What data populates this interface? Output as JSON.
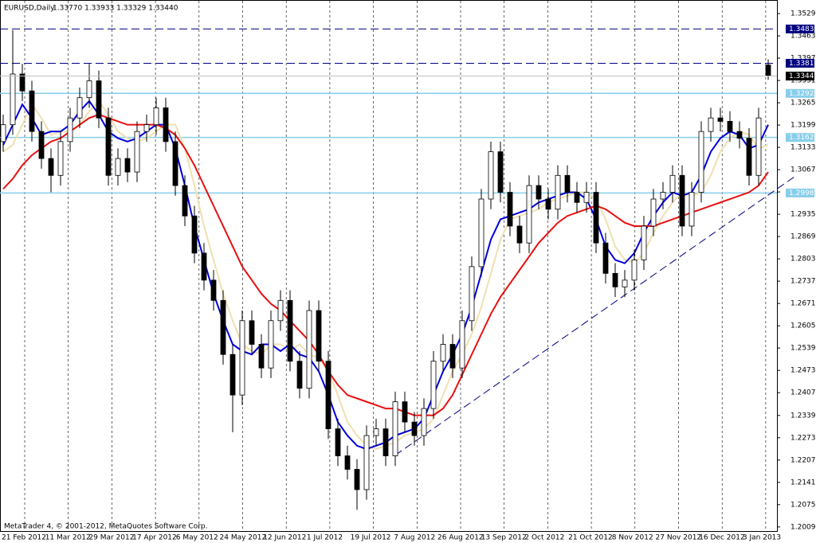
{
  "chart_data": {
    "type": "candlestick",
    "header": {
      "symbol": "EURUSD,Daily",
      "ohlc_text": "1.33770 1.33933 1.33329 1.33440"
    },
    "footer": "MetaTrader 4, © 2001-2012, MetaQuotes Software Corp.",
    "ylim": [
      1.1995,
      1.3555
    ],
    "yticks": [
      {
        "value": 1.3529,
        "label": "1.35290"
      },
      {
        "value": 1.3463,
        "label": "1.34630"
      },
      {
        "value": 1.3397,
        "label": "1.33970"
      },
      {
        "value": 1.3331,
        "label": "1.33310"
      },
      {
        "value": 1.3265,
        "label": "1.32650"
      },
      {
        "value": 1.3199,
        "label": "1.31990"
      },
      {
        "value": 1.3133,
        "label": "1.31330"
      },
      {
        "value": 1.3067,
        "label": "1.30670"
      },
      {
        "value": 1.3001,
        "label": "1.30010"
      },
      {
        "value": 1.2935,
        "label": "1.29350"
      },
      {
        "value": 1.2869,
        "label": "1.28690"
      },
      {
        "value": 1.2803,
        "label": "1.28030"
      },
      {
        "value": 1.2737,
        "label": "1.27370"
      },
      {
        "value": 1.2671,
        "label": "1.26710"
      },
      {
        "value": 1.2605,
        "label": "1.26050"
      },
      {
        "value": 1.2539,
        "label": "1.25390"
      },
      {
        "value": 1.2473,
        "label": "1.24730"
      },
      {
        "value": 1.2407,
        "label": "1.24070"
      },
      {
        "value": 1.23395,
        "label": "1.23395"
      },
      {
        "value": 1.22735,
        "label": "1.22735"
      },
      {
        "value": 1.22075,
        "label": "1.22075"
      },
      {
        "value": 1.21415,
        "label": "1.21415"
      },
      {
        "value": 1.20755,
        "label": "1.20755"
      },
      {
        "value": 1.20095,
        "label": "1.20095"
      }
    ],
    "x_labels": [
      "21 Feb 2012",
      "11 Mar 2012",
      "29 Mar 2012",
      "17 Apr 2012",
      "6 May 2012",
      "24 May 2012",
      "12 Jun 2012",
      "1 Jul 2012",
      "19 Jul 2012",
      "7 Aug 2012",
      "26 Aug 2012",
      "13 Sep 2012",
      "2 Oct 2012",
      "21 Oct 2012",
      "8 Nov 2012",
      "27 Nov 2012",
      "16 Dec 2012",
      "3 Jan 2013"
    ],
    "candles": [
      [
        1.315,
        1.323,
        1.312,
        1.32
      ],
      [
        1.32,
        1.348,
        1.317,
        1.335
      ],
      [
        1.335,
        1.338,
        1.327,
        1.33
      ],
      [
        1.33,
        1.333,
        1.315,
        1.318
      ],
      [
        1.318,
        1.321,
        1.307,
        1.31
      ],
      [
        1.31,
        1.313,
        1.3,
        1.305
      ],
      [
        1.305,
        1.318,
        1.302,
        1.315
      ],
      [
        1.315,
        1.325,
        1.312,
        1.322
      ],
      [
        1.322,
        1.331,
        1.319,
        1.328
      ],
      [
        1.328,
        1.338,
        1.325,
        1.333
      ],
      [
        1.333,
        1.336,
        1.319,
        1.322
      ],
      [
        1.322,
        1.325,
        1.302,
        1.305
      ],
      [
        1.305,
        1.313,
        1.302,
        1.31
      ],
      [
        1.31,
        1.313,
        1.303,
        1.306
      ],
      [
        1.306,
        1.321,
        1.303,
        1.318
      ],
      [
        1.318,
        1.323,
        1.315,
        1.32
      ],
      [
        1.32,
        1.328,
        1.317,
        1.325
      ],
      [
        1.325,
        1.328,
        1.312,
        1.315
      ],
      [
        1.315,
        1.318,
        1.299,
        1.302
      ],
      [
        1.302,
        1.305,
        1.29,
        1.293
      ],
      [
        1.293,
        1.296,
        1.279,
        1.282
      ],
      [
        1.282,
        1.285,
        1.271,
        1.274
      ],
      [
        1.274,
        1.277,
        1.265,
        1.268
      ],
      [
        1.268,
        1.271,
        1.249,
        1.252
      ],
      [
        1.252,
        1.255,
        1.229,
        1.24
      ],
      [
        1.24,
        1.265,
        1.237,
        1.262
      ],
      [
        1.262,
        1.265,
        1.252,
        1.255
      ],
      [
        1.255,
        1.258,
        1.245,
        1.248
      ],
      [
        1.248,
        1.265,
        1.245,
        1.262
      ],
      [
        1.262,
        1.271,
        1.259,
        1.268
      ],
      [
        1.268,
        1.271,
        1.247,
        1.25
      ],
      [
        1.25,
        1.253,
        1.239,
        1.242
      ],
      [
        1.242,
        1.268,
        1.239,
        1.265
      ],
      [
        1.265,
        1.268,
        1.247,
        1.25
      ],
      [
        1.25,
        1.253,
        1.227,
        1.23
      ],
      [
        1.23,
        1.233,
        1.219,
        1.222
      ],
      [
        1.222,
        1.225,
        1.215,
        1.218
      ],
      [
        1.218,
        1.221,
        1.206,
        1.212
      ],
      [
        1.212,
        1.231,
        1.209,
        1.228
      ],
      [
        1.228,
        1.233,
        1.225,
        1.23
      ],
      [
        1.23,
        1.233,
        1.219,
        1.222
      ],
      [
        1.222,
        1.241,
        1.219,
        1.238
      ],
      [
        1.238,
        1.241,
        1.229,
        1.232
      ],
      [
        1.232,
        1.235,
        1.225,
        1.228
      ],
      [
        1.228,
        1.239,
        1.225,
        1.236
      ],
      [
        1.236,
        1.253,
        1.233,
        1.25
      ],
      [
        1.25,
        1.258,
        1.247,
        1.255
      ],
      [
        1.255,
        1.258,
        1.245,
        1.248
      ],
      [
        1.248,
        1.265,
        1.245,
        1.262
      ],
      [
        1.262,
        1.281,
        1.259,
        1.278
      ],
      [
        1.278,
        1.301,
        1.275,
        1.298
      ],
      [
        1.298,
        1.315,
        1.295,
        1.312
      ],
      [
        1.312,
        1.315,
        1.297,
        1.3
      ],
      [
        1.3,
        1.303,
        1.287,
        1.29
      ],
      [
        1.29,
        1.293,
        1.282,
        1.285
      ],
      [
        1.285,
        1.305,
        1.282,
        1.302
      ],
      [
        1.302,
        1.305,
        1.295,
        1.298
      ],
      [
        1.298,
        1.301,
        1.292,
        1.295
      ],
      [
        1.295,
        1.308,
        1.292,
        1.305
      ],
      [
        1.305,
        1.308,
        1.297,
        1.3
      ],
      [
        1.3,
        1.303,
        1.294,
        1.297
      ],
      [
        1.297,
        1.303,
        1.294,
        1.3
      ],
      [
        1.3,
        1.303,
        1.282,
        1.285
      ],
      [
        1.285,
        1.288,
        1.273,
        1.276
      ],
      [
        1.276,
        1.279,
        1.269,
        1.272
      ],
      [
        1.272,
        1.277,
        1.269,
        1.274
      ],
      [
        1.274,
        1.283,
        1.271,
        1.28
      ],
      [
        1.28,
        1.293,
        1.277,
        1.29
      ],
      [
        1.29,
        1.301,
        1.287,
        1.298
      ],
      [
        1.298,
        1.303,
        1.295,
        1.3
      ],
      [
        1.3,
        1.308,
        1.297,
        1.305
      ],
      [
        1.305,
        1.308,
        1.287,
        1.29
      ],
      [
        1.29,
        1.303,
        1.287,
        1.3
      ],
      [
        1.3,
        1.321,
        1.297,
        1.318
      ],
      [
        1.318,
        1.325,
        1.315,
        1.322
      ],
      [
        1.322,
        1.325,
        1.318,
        1.321
      ],
      [
        1.321,
        1.324,
        1.315,
        1.318
      ],
      [
        1.318,
        1.321,
        1.313,
        1.316
      ],
      [
        1.316,
        1.319,
        1.302,
        1.305
      ],
      [
        1.305,
        1.325,
        1.302,
        1.322
      ],
      [
        1.3377,
        1.33933,
        1.33329,
        1.3344
      ]
    ],
    "moving_averages": [
      {
        "color": "#f0e0b0",
        "values": [
          1.312,
          1.314,
          1.32,
          1.326,
          1.322,
          1.317,
          1.318,
          1.318,
          1.32,
          1.324,
          1.327,
          1.323,
          1.318,
          1.316,
          1.315,
          1.316,
          1.318,
          1.32,
          1.32,
          1.313,
          1.302,
          1.29,
          1.28,
          1.27,
          1.262,
          1.255,
          1.253,
          1.252,
          1.255,
          1.255,
          1.253,
          1.255,
          1.252,
          1.251,
          1.247,
          1.24,
          1.232,
          1.228,
          1.225,
          1.224,
          1.225,
          1.226,
          1.228,
          1.229,
          1.23,
          1.233,
          1.24,
          1.247,
          1.252,
          1.258,
          1.266,
          1.276,
          1.286,
          1.292,
          1.293,
          1.294,
          1.295,
          1.297,
          1.298,
          1.299,
          1.3,
          1.3,
          1.298,
          1.292,
          1.284,
          1.28,
          1.279,
          1.282,
          1.288,
          1.293,
          1.297,
          1.3,
          1.299,
          1.3,
          1.305,
          1.312,
          1.316,
          1.318,
          1.317,
          1.313,
          1.314
        ]
      },
      {
        "color": "#0000dd",
        "values": [
          1.314,
          1.32,
          1.326,
          1.322,
          1.317,
          1.318,
          1.318,
          1.32,
          1.324,
          1.327,
          1.323,
          1.318,
          1.316,
          1.315,
          1.316,
          1.318,
          1.32,
          1.32,
          1.313,
          1.302,
          1.29,
          1.28,
          1.27,
          1.262,
          1.255,
          1.253,
          1.252,
          1.255,
          1.255,
          1.253,
          1.255,
          1.252,
          1.251,
          1.247,
          1.24,
          1.232,
          1.228,
          1.225,
          1.224,
          1.225,
          1.226,
          1.228,
          1.229,
          1.23,
          1.233,
          1.24,
          1.247,
          1.252,
          1.258,
          1.266,
          1.276,
          1.286,
          1.292,
          1.293,
          1.294,
          1.295,
          1.297,
          1.298,
          1.299,
          1.3,
          1.3,
          1.298,
          1.292,
          1.284,
          1.28,
          1.279,
          1.282,
          1.288,
          1.293,
          1.297,
          1.3,
          1.299,
          1.3,
          1.305,
          1.312,
          1.316,
          1.318,
          1.317,
          1.313,
          1.314,
          1.32
        ]
      },
      {
        "color": "#e81010",
        "values": [
          1.301,
          1.304,
          1.308,
          1.311,
          1.313,
          1.315,
          1.316,
          1.318,
          1.32,
          1.322,
          1.323,
          1.322,
          1.321,
          1.32,
          1.32,
          1.32,
          1.32,
          1.319,
          1.317,
          1.313,
          1.308,
          1.302,
          1.296,
          1.29,
          1.284,
          1.278,
          1.274,
          1.27,
          1.267,
          1.265,
          1.262,
          1.259,
          1.256,
          1.252,
          1.247,
          1.243,
          1.24,
          1.239,
          1.238,
          1.237,
          1.236,
          1.236,
          1.235,
          1.234,
          1.234,
          1.234,
          1.236,
          1.24,
          1.246,
          1.252,
          1.258,
          1.264,
          1.269,
          1.273,
          1.277,
          1.281,
          1.285,
          1.288,
          1.291,
          1.293,
          1.294,
          1.295,
          1.296,
          1.295,
          1.293,
          1.291,
          1.29,
          1.29,
          1.29,
          1.291,
          1.292,
          1.293,
          1.294,
          1.295,
          1.296,
          1.297,
          1.298,
          1.299,
          1.3,
          1.302,
          1.306
        ]
      }
    ],
    "levels": [
      {
        "value": 1.34834,
        "label": "1.34834",
        "color": "#000080",
        "dashed": true
      },
      {
        "value": 1.33819,
        "label": "1.33819",
        "color": "#000080",
        "dashed": true
      },
      {
        "value": 1.32928,
        "label": "1.32928",
        "color": "#87ceeb",
        "dashed": false
      },
      {
        "value": 1.31623,
        "label": "1.31623",
        "color": "#87ceeb",
        "dashed": false
      },
      {
        "value": 1.2998,
        "label": "1.29980",
        "color": "#87ceeb",
        "dashed": false
      }
    ],
    "current_price": {
      "value": 1.3344,
      "label": "1.33440"
    },
    "trendline": {
      "color": "#000080",
      "from": [
        41,
        1.2222
      ],
      "to": [
        83,
        1.3051
      ]
    }
  }
}
